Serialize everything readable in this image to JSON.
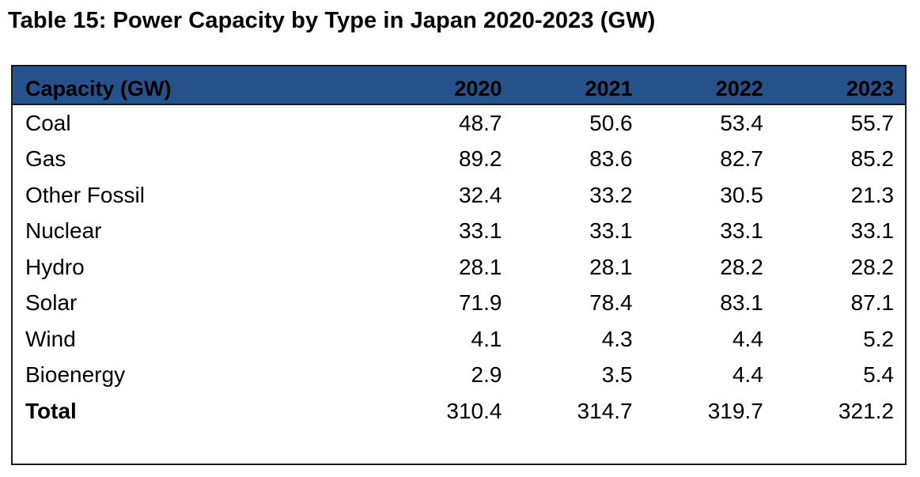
{
  "title": "Table 15: Power Capacity by Type in Japan 2020-2023 (GW)",
  "colors": {
    "header_bg": "#25528a",
    "border": "#1a1a1a"
  },
  "table": {
    "headers": [
      "Capacity (GW)",
      "2020",
      "2021",
      "2022",
      "2023"
    ],
    "rows": [
      {
        "label": "Coal",
        "values": [
          "48.7",
          "50.6",
          "53.4",
          "55.7"
        ]
      },
      {
        "label": "Gas",
        "values": [
          "89.2",
          "83.6",
          "82.7",
          "85.2"
        ]
      },
      {
        "label": "Other Fossil",
        "values": [
          "32.4",
          "33.2",
          "30.5",
          "21.3"
        ]
      },
      {
        "label": "Nuclear",
        "values": [
          "33.1",
          "33.1",
          "33.1",
          "33.1"
        ]
      },
      {
        "label": "Hydro",
        "values": [
          "28.1",
          "28.1",
          "28.2",
          "28.2"
        ]
      },
      {
        "label": "Solar",
        "values": [
          "71.9",
          "78.4",
          "83.1",
          "87.1"
        ]
      },
      {
        "label": "Wind",
        "values": [
          "4.1",
          "4.3",
          "4.4",
          "5.2"
        ]
      },
      {
        "label": "Bioenergy",
        "values": [
          "2.9",
          "3.5",
          "4.4",
          "5.4"
        ]
      }
    ],
    "total": {
      "label": "Total",
      "values": [
        "310.4",
        "314.7",
        "319.7",
        "321.2"
      ]
    }
  }
}
